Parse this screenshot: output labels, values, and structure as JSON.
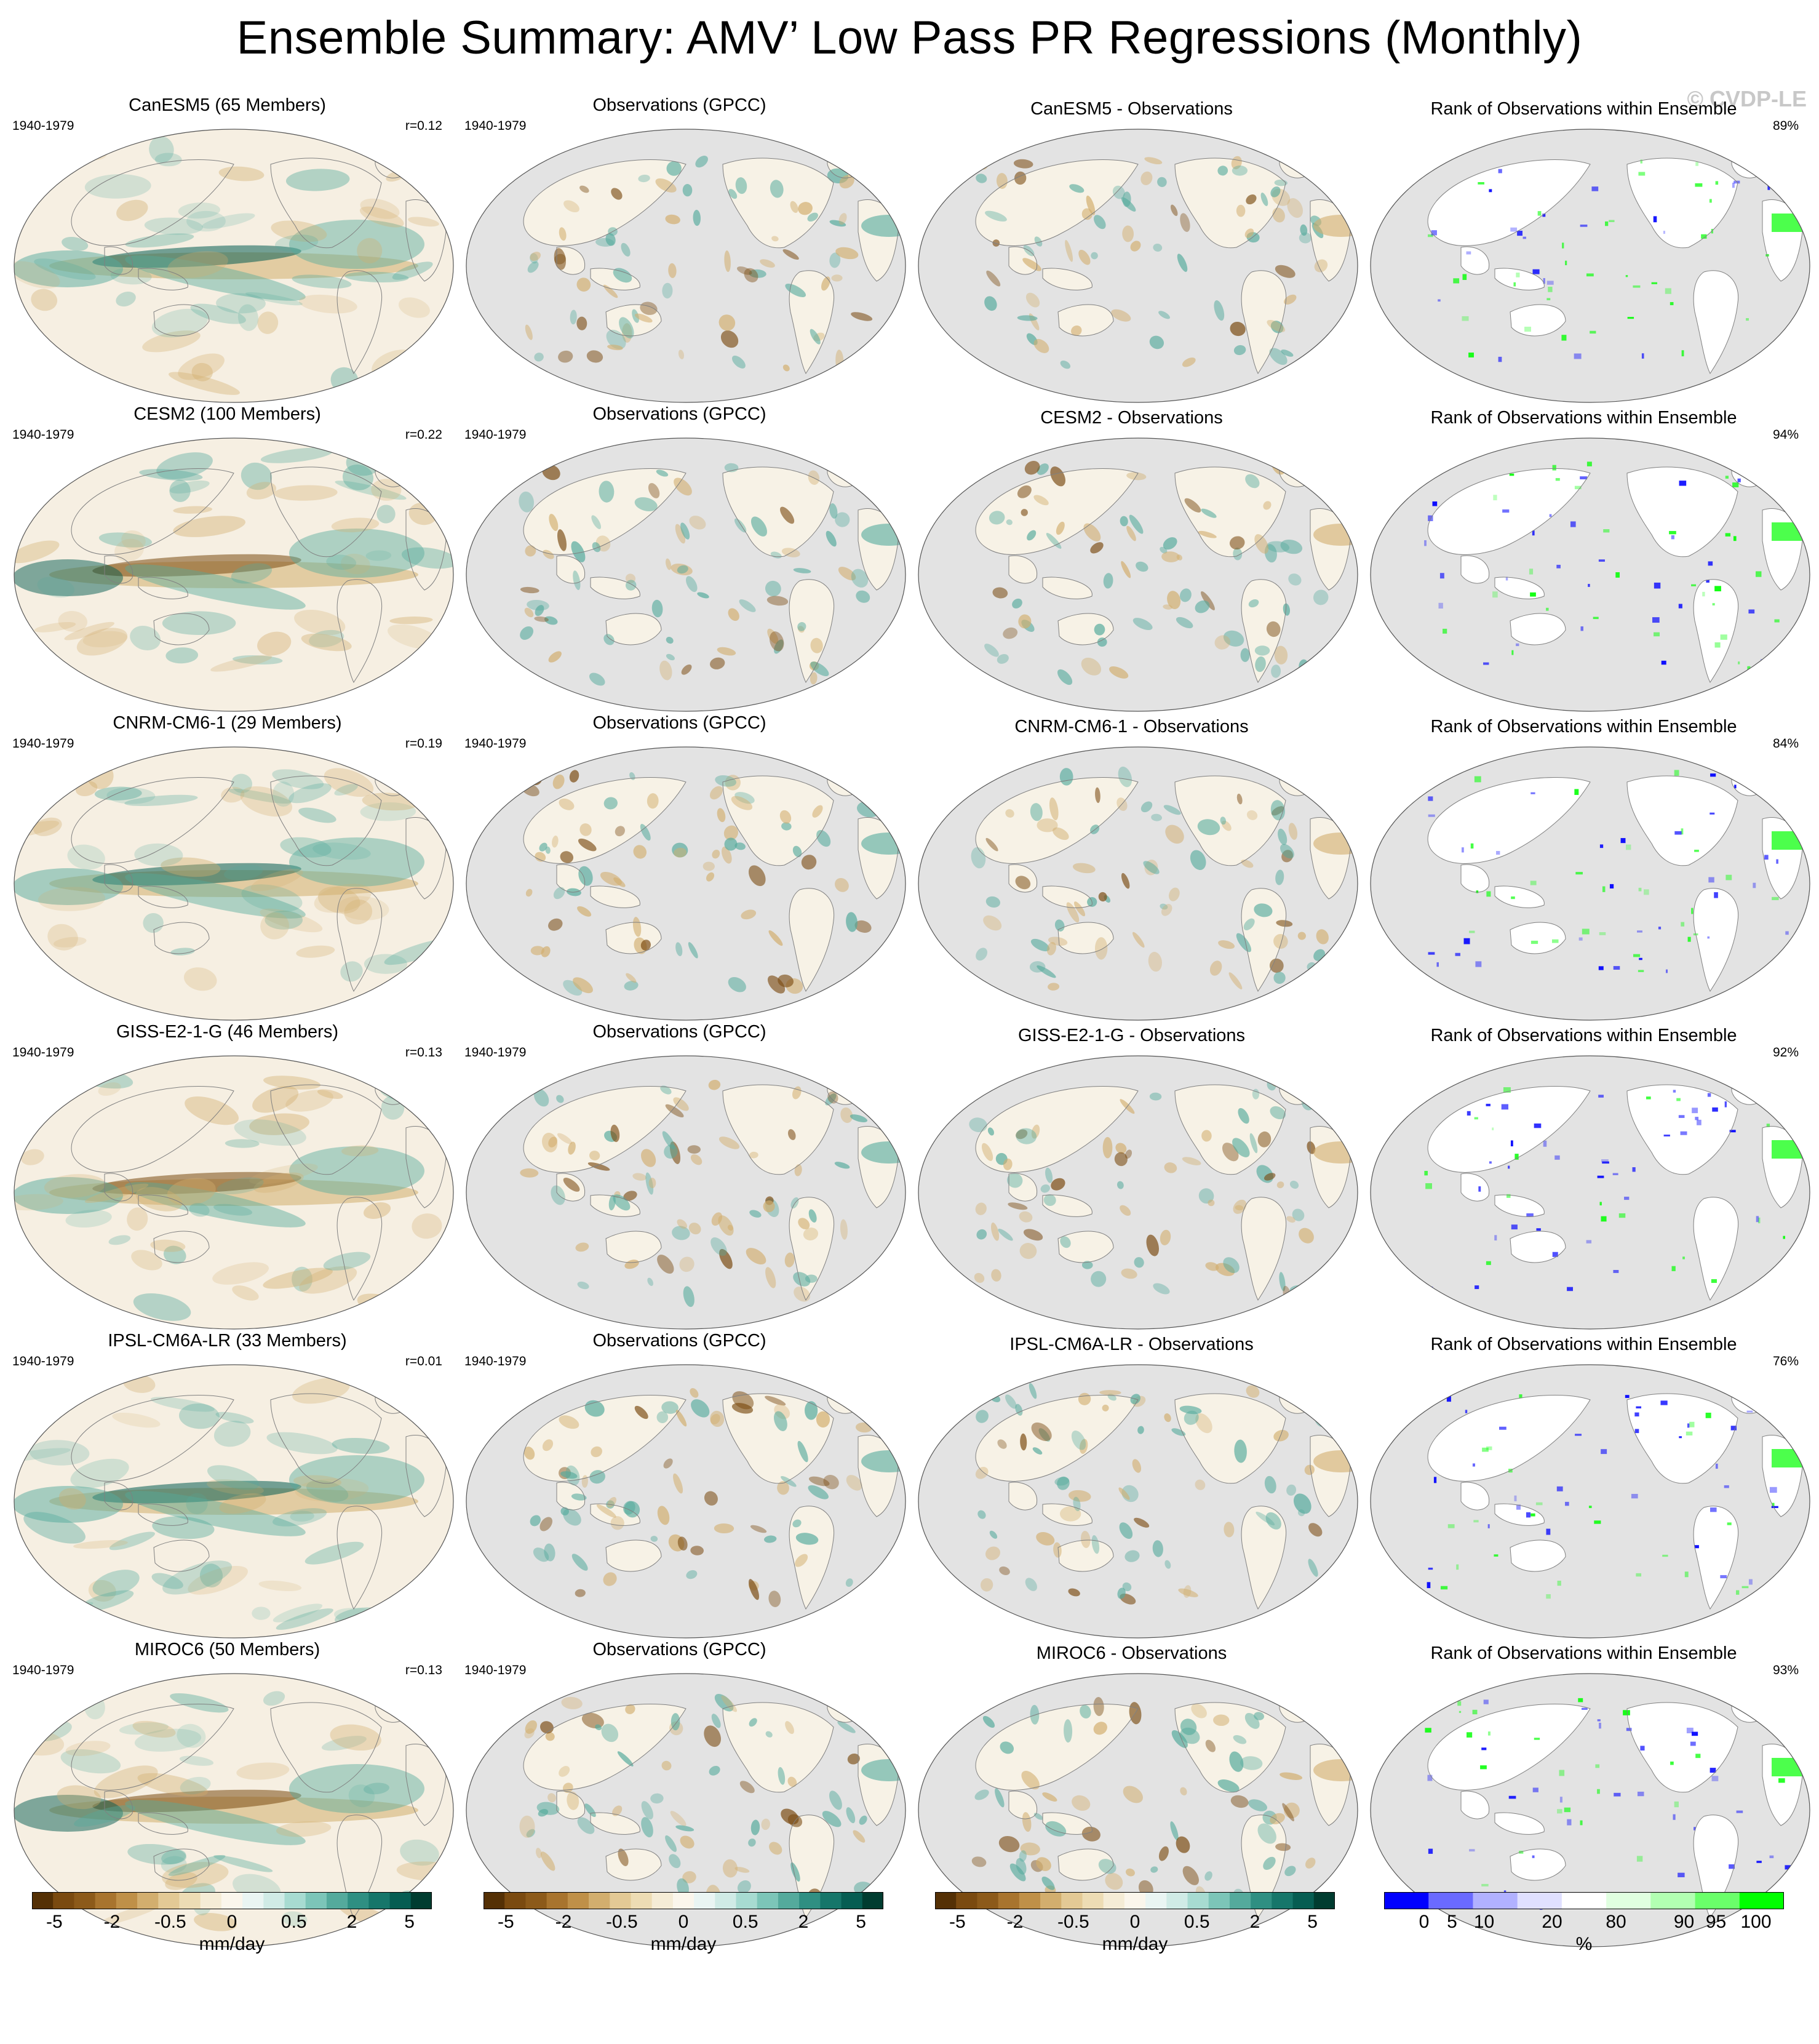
{
  "title": "Ensemble Summary: AMV’ Low Pass PR Regressions (Monthly)",
  "watermark": "© CVDP-LE",
  "rows": [
    {
      "model_title": "CanESM5 (65 Members)",
      "r": "r=0.12",
      "diff_title": "CanESM5 - Observations",
      "rank_pct": "89%"
    },
    {
      "model_title": "CESM2 (100 Members)",
      "r": "r=0.22",
      "diff_title": "CESM2 - Observations",
      "rank_pct": "94%"
    },
    {
      "model_title": "CNRM-CM6-1 (29 Members)",
      "r": "r=0.19",
      "diff_title": "CNRM-CM6-1 - Observations",
      "rank_pct": "84%"
    },
    {
      "model_title": "GISS-E2-1-G (46 Members)",
      "r": "r=0.13",
      "diff_title": "GISS-E2-1-G - Observations",
      "rank_pct": "92%"
    },
    {
      "model_title": "IPSL-CM6A-LR (33 Members)",
      "r": "r=0.01",
      "diff_title": "IPSL-CM6A-LR - Observations",
      "rank_pct": "76%"
    },
    {
      "model_title": "MIROC6 (50 Members)",
      "r": "r=0.13",
      "diff_title": "MIROC6 - Observations",
      "rank_pct": "93%"
    }
  ],
  "years": "1940-1979",
  "obs_title": "Observations (GPCC)",
  "rank_title": "Rank of Observations within Ensemble",
  "colorbars": {
    "pr": {
      "units": "mm/day",
      "tick_labels": [
        "-5",
        "-2",
        "-0.5",
        "0",
        "0.5",
        "2",
        "5"
      ],
      "colors": [
        "#543005",
        "#7a4a10",
        "#8c5a1a",
        "#a8742e",
        "#bf9048",
        "#d2ae6e",
        "#e3c995",
        "#eddcb4",
        "#f5ecd6",
        "#fbf6ec",
        "#eaf5f3",
        "#d0ebe6",
        "#a7dbd1",
        "#7cc5b8",
        "#54aa9c",
        "#2f8f82",
        "#16766a",
        "#065d52",
        "#003c30"
      ]
    },
    "rank": {
      "units": "%",
      "tick_labels": [
        "0",
        "5",
        "10",
        "20",
        "80",
        "90",
        "95",
        "100"
      ],
      "colors": [
        "#0000ff",
        "#6a6aff",
        "#b1b1ff",
        "#e0e0ff",
        "#ffffff",
        "#e0ffe0",
        "#b2ffb2",
        "#6aff6a",
        "#00ff00"
      ]
    }
  },
  "colors": {
    "land_gray": "#e3e3e3",
    "coast": "#808080",
    "tan": "#d2ae6e",
    "brown": "#7a4a10",
    "teal": "#54aa9c",
    "dark_teal": "#065d52",
    "blue": "#0000ff",
    "green": "#00ff00"
  }
}
